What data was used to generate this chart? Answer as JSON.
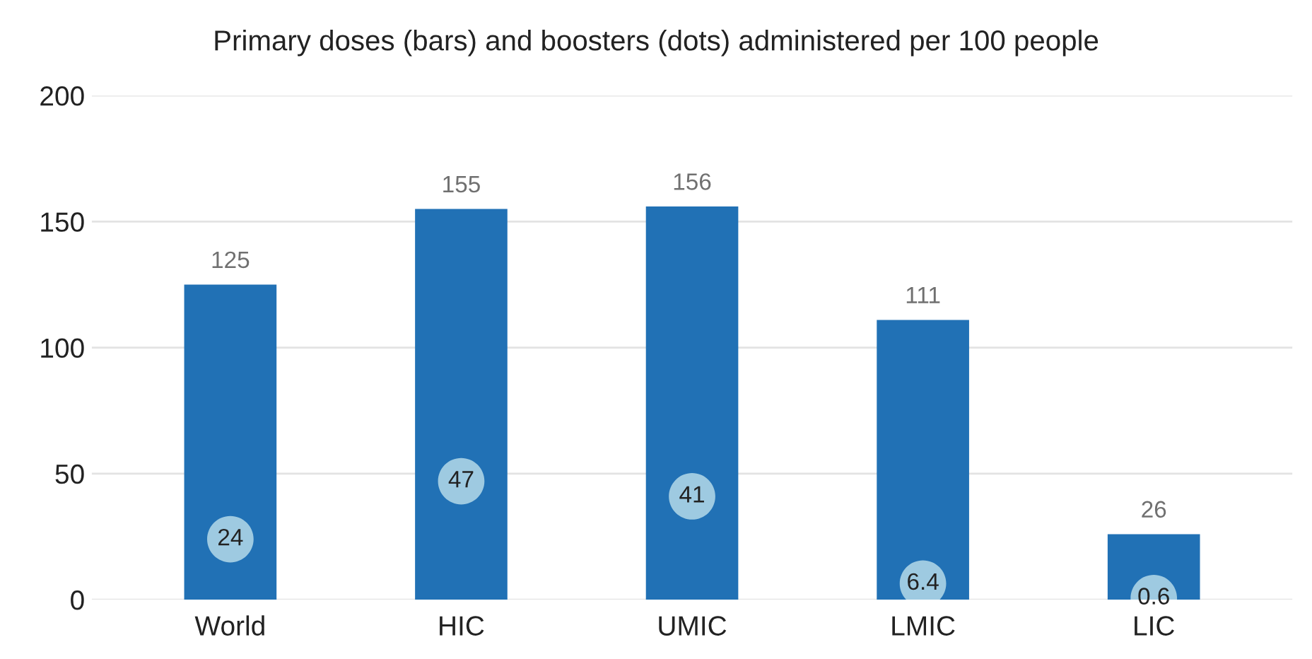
{
  "chart_data": {
    "type": "bar",
    "title": "Primary doses (bars) and boosters (dots) administered per 100 people",
    "categories": [
      "World",
      "HIC",
      "UMIC",
      "LMIC",
      "LIC"
    ],
    "series": [
      {
        "color": "#2171b5",
        "values": [
          125,
          155,
          156,
          111,
          26
        ]
      },
      {
        "type": "scatter",
        "color": "#9ecae1",
        "x": [
          "World",
          "HIC",
          "UMIC",
          "LMIC",
          "LIC"
        ],
        "values": [
          24,
          47,
          41,
          6.4,
          0.6
        ]
      }
    ],
    "ylim": [
      0,
      200
    ],
    "yticks": [
      0,
      50,
      100,
      150,
      200
    ],
    "grid": "y",
    "data_labels": true,
    "marker": "circle"
  }
}
